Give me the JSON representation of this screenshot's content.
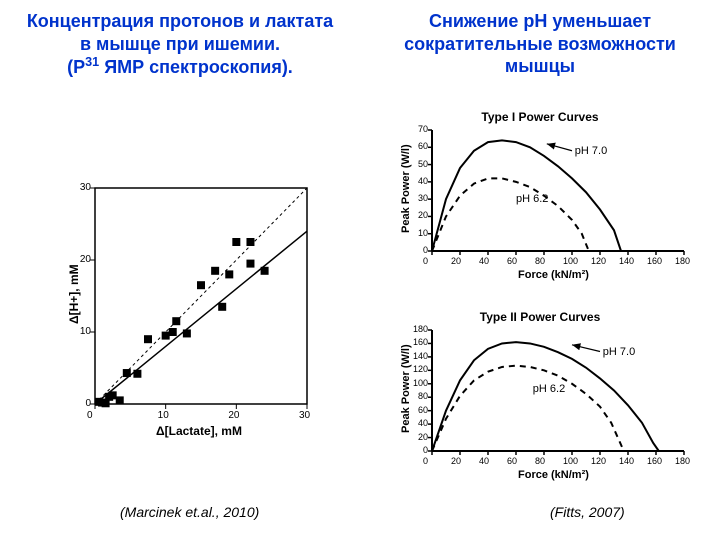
{
  "left": {
    "title_a": "Концентрация протонов и лактата в мышце при ишемии.",
    "title_b_pre": "(P",
    "title_b_sup": "31",
    "title_b_post": " ЯМР спектроскопия).",
    "citation": "(Marcinek et.al., 2010)",
    "chart": {
      "type": "scatter",
      "xlabel": "Δ[Lactate], mM",
      "ylabel": "Δ[H+], mM",
      "xlim": [
        0,
        30
      ],
      "ylim": [
        0,
        30
      ],
      "xticks": [
        0,
        10,
        20,
        30
      ],
      "yticks": [
        0,
        10,
        20,
        30
      ],
      "axis_color": "#000000",
      "tick_fontsize": 10,
      "label_fontsize": 12,
      "marker": "square",
      "marker_size": 8,
      "marker_color": "#000000",
      "identity_line": {
        "from": [
          0,
          0
        ],
        "to": [
          30,
          30
        ],
        "dash": "3,3",
        "color": "#000000",
        "width": 1
      },
      "fit_line": {
        "from": [
          0,
          0
        ],
        "to": [
          30,
          24
        ],
        "color": "#000000",
        "width": 1.5
      },
      "points": [
        [
          0.5,
          0.3
        ],
        [
          1,
          0.2
        ],
        [
          1.5,
          0.1
        ],
        [
          2,
          1.0
        ],
        [
          2.5,
          1.2
        ],
        [
          3.5,
          0.5
        ],
        [
          4.5,
          4.3
        ],
        [
          6,
          4.2
        ],
        [
          7.5,
          9.0
        ],
        [
          10,
          9.5
        ],
        [
          11,
          10.0
        ],
        [
          11.5,
          11.5
        ],
        [
          13,
          9.8
        ],
        [
          15,
          16.5
        ],
        [
          17,
          18.5
        ],
        [
          18,
          13.5
        ],
        [
          19,
          18.0
        ],
        [
          20,
          22.5
        ],
        [
          22,
          19.5
        ],
        [
          22,
          22.5
        ],
        [
          24,
          18.5
        ]
      ]
    }
  },
  "right": {
    "title": "Снижение рН уменьшает сократительные возможности мышцы",
    "citation": "(Fitts, 2007)",
    "top": {
      "type": "line",
      "chart_title": "Type I Power Curves",
      "xlabel": "Force (kN/m²)",
      "ylabel": "Peak Power (W/l)",
      "xlim": [
        0,
        180
      ],
      "ylim": [
        0,
        70
      ],
      "xticks": [
        0,
        20,
        40,
        60,
        80,
        100,
        120,
        140,
        160,
        180
      ],
      "yticks": [
        0,
        10,
        20,
        30,
        40,
        50,
        60,
        70
      ],
      "axis_color": "#000000",
      "axis_width": 2,
      "curves": [
        {
          "label": "pH 7.0",
          "color": "#000000",
          "width": 2,
          "dash": "",
          "arrow_from": [
            100,
            58
          ],
          "arrow_to": [
            82,
            62
          ],
          "label_at": [
            102,
            58
          ],
          "pts": [
            [
              0,
              0
            ],
            [
              10,
              30
            ],
            [
              20,
              48
            ],
            [
              30,
              58
            ],
            [
              40,
              63
            ],
            [
              50,
              64
            ],
            [
              60,
              63
            ],
            [
              70,
              60
            ],
            [
              80,
              55
            ],
            [
              90,
              49
            ],
            [
              100,
              42
            ],
            [
              110,
              34
            ],
            [
              120,
              24
            ],
            [
              130,
              12
            ],
            [
              135,
              0
            ]
          ]
        },
        {
          "label": "pH 6.2",
          "color": "#000000",
          "width": 2,
          "dash": "6,5",
          "label_at": [
            60,
            30
          ],
          "pts": [
            [
              0,
              0
            ],
            [
              10,
              20
            ],
            [
              20,
              32
            ],
            [
              30,
              39
            ],
            [
              40,
              42
            ],
            [
              50,
              42
            ],
            [
              60,
              40
            ],
            [
              70,
              37
            ],
            [
              80,
              32
            ],
            [
              90,
              26
            ],
            [
              100,
              18
            ],
            [
              107,
              10
            ],
            [
              112,
              0
            ]
          ]
        }
      ]
    },
    "bottom": {
      "type": "line",
      "chart_title": "Type II Power Curves",
      "xlabel": "Force (kN/m²)",
      "ylabel": "Peak Power (W/l)",
      "xlim": [
        0,
        180
      ],
      "ylim": [
        0,
        180
      ],
      "xticks": [
        0,
        20,
        40,
        60,
        80,
        100,
        120,
        140,
        160,
        180
      ],
      "yticks": [
        0,
        20,
        40,
        60,
        80,
        100,
        120,
        140,
        160,
        180
      ],
      "axis_color": "#000000",
      "axis_width": 2,
      "curves": [
        {
          "label": "pH 7.0",
          "color": "#000000",
          "width": 2,
          "dash": "",
          "arrow_from": [
            120,
            148
          ],
          "arrow_to": [
            100,
            158
          ],
          "label_at": [
            122,
            148
          ],
          "pts": [
            [
              0,
              0
            ],
            [
              10,
              60
            ],
            [
              20,
              105
            ],
            [
              30,
              135
            ],
            [
              40,
              152
            ],
            [
              50,
              160
            ],
            [
              60,
              162
            ],
            [
              70,
              160
            ],
            [
              80,
              155
            ],
            [
              90,
              147
            ],
            [
              100,
              137
            ],
            [
              110,
              124
            ],
            [
              120,
              108
            ],
            [
              130,
              90
            ],
            [
              140,
              68
            ],
            [
              150,
              42
            ],
            [
              158,
              12
            ],
            [
              162,
              0
            ]
          ]
        },
        {
          "label": "pH 6.2",
          "color": "#000000",
          "width": 2,
          "dash": "6,5",
          "label_at": [
            72,
            92
          ],
          "pts": [
            [
              0,
              0
            ],
            [
              10,
              48
            ],
            [
              20,
              82
            ],
            [
              30,
              105
            ],
            [
              40,
              118
            ],
            [
              50,
              125
            ],
            [
              60,
              127
            ],
            [
              70,
              125
            ],
            [
              80,
              120
            ],
            [
              90,
              112
            ],
            [
              100,
              100
            ],
            [
              110,
              85
            ],
            [
              120,
              66
            ],
            [
              128,
              42
            ],
            [
              134,
              14
            ],
            [
              137,
              0
            ]
          ]
        }
      ]
    }
  },
  "colors": {
    "text_blue": "#0033cc",
    "background": "#ffffff"
  }
}
